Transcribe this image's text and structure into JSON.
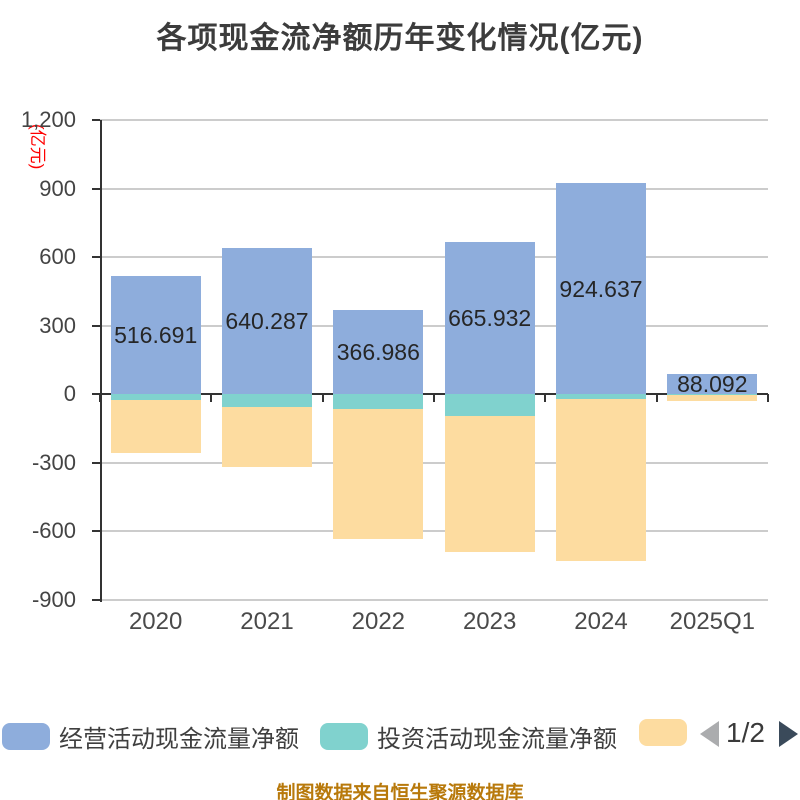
{
  "title": "各项现金流净额历年变化情况(亿元)",
  "y_axis": {
    "unit": "(亿元)",
    "unit_color": "#ff0000",
    "tick_labels": [
      "1,200",
      "900",
      "600",
      "300",
      "0",
      "-300",
      "-600",
      "-900"
    ],
    "tick_values": [
      1200,
      900,
      600,
      300,
      0,
      -300,
      -600,
      -900
    ]
  },
  "chart_data": {
    "type": "bar",
    "stacked": true,
    "categories": [
      "2020",
      "2021",
      "2022",
      "2023",
      "2024",
      "2025Q1"
    ],
    "series": [
      {
        "name": "经营活动现金流量净额",
        "color": "#8EADDC",
        "values": [
          516.691,
          640.287,
          366.986,
          665.932,
          924.637,
          88.092
        ],
        "data_labels": [
          "516.691",
          "640.287",
          "366.986",
          "665.932",
          "924.637",
          "88.092"
        ]
      },
      {
        "name": "投资活动现金流量净额",
        "color": "#80D2CE",
        "values": [
          -25,
          -54,
          -65,
          -95,
          -20,
          -4
        ]
      },
      {
        "name": "",
        "color": "#FDDCA0",
        "values": [
          -230,
          -266,
          -570,
          -595,
          -710,
          -24
        ]
      }
    ],
    "ylim": [
      -900,
      1200
    ],
    "grid": true,
    "legend_position": "bottom",
    "title": "各项现金流净额历年变化情况(亿元)",
    "ylabel": "(亿元)"
  },
  "legend": {
    "items": [
      {
        "label": "经营活动现金流量净额",
        "color": "#8EADDC"
      },
      {
        "label": "投资活动现金流量净额",
        "color": "#80D2CE"
      },
      {
        "label": "",
        "color": "#FDDCA0"
      }
    ],
    "pagination": {
      "current": "1/2",
      "prev_icon": "left-triangle",
      "next_icon": "right-triangle"
    }
  },
  "footer": "制图数据来自恒生聚源数据库",
  "colors": {
    "gridline": "#cccccc",
    "axis": "#333333",
    "tick_text": "#444444",
    "bar_label": "#262626",
    "prev_arrow": "#abacae",
    "next_arrow": "#3a4a5a"
  }
}
